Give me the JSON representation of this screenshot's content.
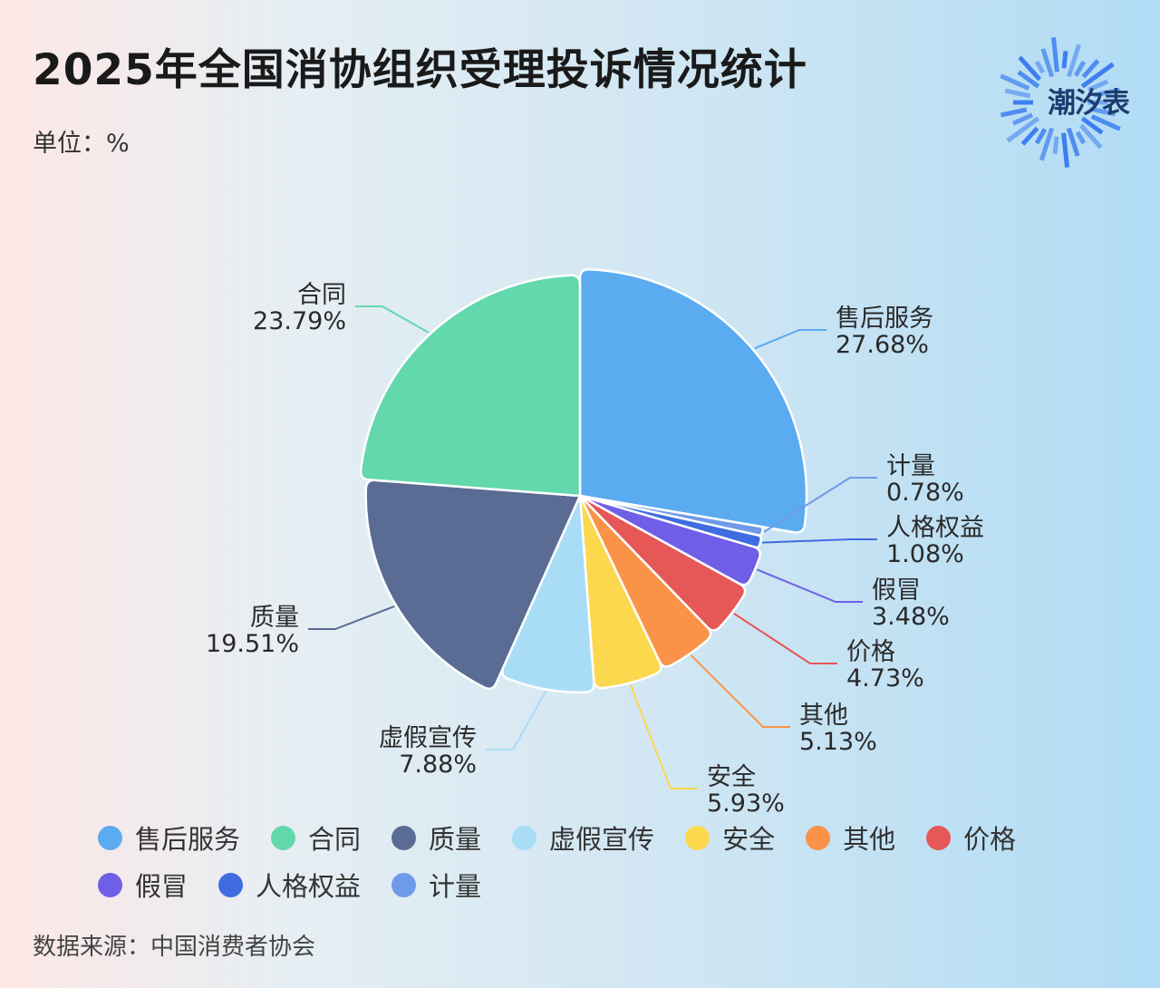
{
  "header": {
    "title": "2025年全国消协组织受理投诉情况统计",
    "unit": "单位：%"
  },
  "logo": {
    "text": "潮汐表",
    "icon": "sunburst-logo-icon",
    "color": "#3d7ff0"
  },
  "footer": {
    "source": "数据来源：中国消费者协会"
  },
  "chart_data": {
    "type": "pie",
    "title": "2025年全国消协组织受理投诉情况统计",
    "unit": "%",
    "legend_position": "bottom",
    "slices": [
      {
        "label": "售后服务",
        "value": 27.68,
        "display": "27.68%",
        "color": "#5aabf0"
      },
      {
        "label": "计量",
        "value": 0.78,
        "display": "0.78%",
        "color": "#6f9ae9"
      },
      {
        "label": "人格权益",
        "value": 1.08,
        "display": "1.08%",
        "color": "#3f6ce0"
      },
      {
        "label": "假冒",
        "value": 3.48,
        "display": "3.48%",
        "color": "#6f5ee6"
      },
      {
        "label": "价格",
        "value": 4.73,
        "display": "4.73%",
        "color": "#e65757"
      },
      {
        "label": "其他",
        "value": 5.13,
        "display": "5.13%",
        "color": "#fa9348"
      },
      {
        "label": "安全",
        "value": 5.93,
        "display": "5.93%",
        "color": "#fcd84e"
      },
      {
        "label": "虚假宣传",
        "value": 7.88,
        "display": "7.88%",
        "color": "#a9ddf7"
      },
      {
        "label": "质量",
        "value": 19.51,
        "display": "19.51%",
        "color": "#5a6c94"
      },
      {
        "label": "合同",
        "value": 23.79,
        "display": "23.79%",
        "color": "#63d8ad"
      }
    ],
    "legend_order": [
      "售后服务",
      "合同",
      "质量",
      "虚假宣传",
      "安全",
      "其他",
      "价格",
      "假冒",
      "人格权益",
      "计量"
    ]
  }
}
